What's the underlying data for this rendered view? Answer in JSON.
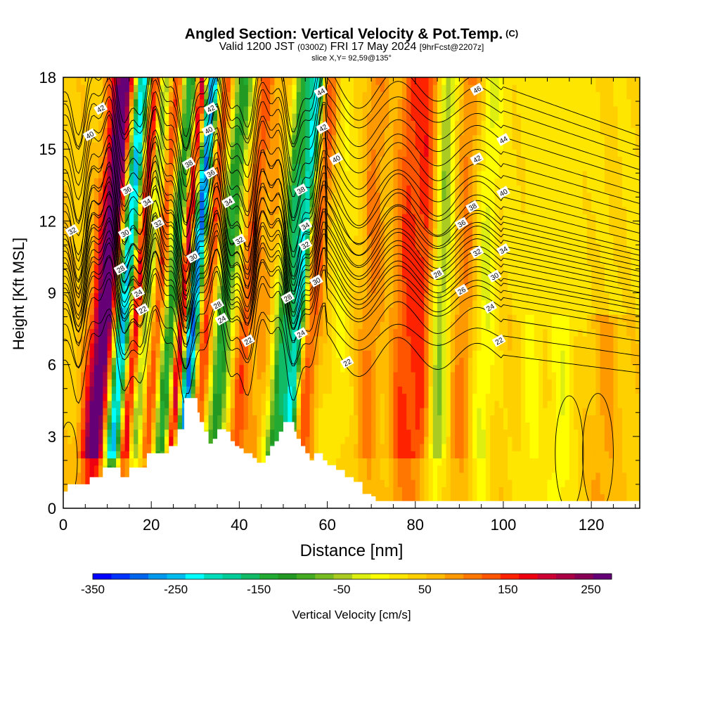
{
  "chart_data": {
    "type": "heatmap",
    "title": "Angled Section: Vertical Velocity & Pot.Temp.",
    "title_unit": "(C)",
    "subtitle_main": "Valid 1200 JST",
    "subtitle_utc": "(0300Z)",
    "subtitle_date": "FRI 17 May 2024",
    "subtitle_fcst": "[9hrFcst@2207z]",
    "slice_label": "slice X,Y= 92,59@135°",
    "xlabel": "Distance [nm]",
    "ylabel": "Height [Kft MSL]",
    "xlim": [
      0,
      131
    ],
    "ylim": [
      0,
      18
    ],
    "x_ticks": [
      0,
      20,
      40,
      60,
      80,
      100,
      120
    ],
    "y_ticks": [
      0,
      3,
      6,
      9,
      12,
      15,
      18
    ],
    "colorbar": {
      "label": "Vertical Velocity [cm/s]",
      "range": [
        -350,
        275
      ],
      "tick_values": [
        -350,
        -250,
        -150,
        -50,
        50,
        150,
        250
      ],
      "tick_labels": [
        "-350",
        "-250",
        "-150",
        "-50",
        "50",
        "150",
        "250"
      ],
      "colors": [
        "#0000ff",
        "#0033ff",
        "#0066ee",
        "#0099ee",
        "#00bbee",
        "#00ffff",
        "#00ddbb",
        "#00cc99",
        "#11bb66",
        "#22aa33",
        "#229922",
        "#44aa22",
        "#77bb22",
        "#aacc22",
        "#ddee11",
        "#ffff00",
        "#ffe600",
        "#ffd000",
        "#ffbb00",
        "#ff9900",
        "#ff7700",
        "#ff5500",
        "#ff2200",
        "#ee0011",
        "#cc0033",
        "#aa0044",
        "#880055",
        "#660077"
      ]
    },
    "velocity_bands": [
      {
        "x": 10,
        "w": 3.0,
        "v": 260
      },
      {
        "x": 14,
        "w": 2.0,
        "v": -330
      },
      {
        "x": 17,
        "w": 1.5,
        "v": 180
      },
      {
        "x": 19,
        "w": 1.5,
        "v": -120
      },
      {
        "x": 22,
        "w": 1.5,
        "v": 100
      },
      {
        "x": 25,
        "w": 1.8,
        "v": -180
      },
      {
        "x": 27.5,
        "w": 1.2,
        "v": 200
      },
      {
        "x": 30,
        "w": 1.6,
        "v": -340
      },
      {
        "x": 33,
        "w": 1.8,
        "v": 110
      },
      {
        "x": 37,
        "w": 2.2,
        "v": -170
      },
      {
        "x": 42,
        "w": 1.8,
        "v": 90
      },
      {
        "x": 46,
        "w": 2.2,
        "v": 40
      },
      {
        "x": 51,
        "w": 2.2,
        "v": -190
      },
      {
        "x": 54,
        "w": 1.5,
        "v": -240
      },
      {
        "x": 57,
        "w": 2.2,
        "v": 90
      },
      {
        "x": 63,
        "w": 3.0,
        "v": -30
      },
      {
        "x": 70,
        "w": 2.5,
        "v": 60
      },
      {
        "x": 78,
        "w": 3.0,
        "v": 100
      },
      {
        "x": 82,
        "w": 2.2,
        "v": 90
      },
      {
        "x": 86,
        "w": 2.2,
        "v": -100
      },
      {
        "x": 91,
        "w": 2.5,
        "v": 60
      },
      {
        "x": 96,
        "w": 2.5,
        "v": -60
      },
      {
        "x": 107,
        "w": 2.5,
        "v": -40
      },
      {
        "x": 114,
        "w": 3.0,
        "v": -50
      },
      {
        "x": 124,
        "w": 3.0,
        "v": 40
      }
    ],
    "terrain": [
      [
        0,
        0.7
      ],
      [
        1,
        1.0
      ],
      [
        6,
        1.3
      ],
      [
        9,
        1.7
      ],
      [
        13,
        1.3
      ],
      [
        15,
        1.7
      ],
      [
        19,
        2.3
      ],
      [
        24,
        2.6
      ],
      [
        26,
        3.3
      ],
      [
        27.5,
        4.6
      ],
      [
        30,
        4.6
      ],
      [
        30.5,
        4.0
      ],
      [
        31,
        3.6
      ],
      [
        32,
        3.2
      ],
      [
        33,
        2.7
      ],
      [
        34,
        2.9
      ],
      [
        35,
        3.3
      ],
      [
        37,
        3.2
      ],
      [
        38,
        2.8
      ],
      [
        39,
        2.6
      ],
      [
        40,
        2.5
      ],
      [
        41,
        2.3
      ],
      [
        43,
        2.1
      ],
      [
        44,
        1.9
      ],
      [
        46,
        2.2
      ],
      [
        47,
        2.6
      ],
      [
        48,
        2.8
      ],
      [
        49,
        3.2
      ],
      [
        50,
        3.6
      ],
      [
        52,
        3.6
      ],
      [
        52.5,
        3.2
      ],
      [
        53,
        2.9
      ],
      [
        54,
        2.6
      ],
      [
        55,
        2.3
      ],
      [
        56,
        2.0
      ],
      [
        57,
        2.3
      ],
      [
        58,
        2.3
      ],
      [
        59,
        2.0
      ],
      [
        60,
        1.8
      ],
      [
        62,
        1.6
      ],
      [
        64,
        1.3
      ],
      [
        66,
        1.1
      ],
      [
        68,
        0.6
      ],
      [
        70,
        0.5
      ],
      [
        71,
        0.3
      ],
      [
        131,
        0.3
      ]
    ],
    "theta_contours": [
      {
        "level": 22,
        "base": 7.2,
        "pert": 1.0,
        "labels": [
          [
            18,
            8.3
          ],
          [
            42,
            7.0
          ],
          [
            64.5,
            6.1
          ],
          [
            99,
            7.0
          ]
        ]
      },
      {
        "level": 24,
        "base": 8.5,
        "pert": 1.2,
        "labels": [
          [
            17,
            9.0
          ],
          [
            36,
            7.9
          ],
          [
            54,
            7.3
          ],
          [
            97,
            8.4
          ]
        ]
      },
      {
        "level": 26,
        "base": 9.1,
        "pert": 1.3,
        "labels": [
          [
            90.5,
            9.1
          ]
        ]
      },
      {
        "level": 28,
        "base": 9.6,
        "pert": 1.5,
        "labels": [
          [
            13,
            10.0
          ],
          [
            35,
            8.5
          ],
          [
            51,
            8.8
          ],
          [
            85,
            9.8
          ]
        ]
      },
      {
        "level": 30,
        "base": 10.2,
        "pert": 1.6,
        "labels": [
          [
            14,
            11.5
          ],
          [
            29.5,
            10.5
          ],
          [
            57.5,
            9.5
          ],
          [
            98,
            9.7
          ]
        ]
      },
      {
        "level": 32,
        "base": 10.7,
        "pert": 1.7,
        "labels": [
          [
            2,
            11.6
          ],
          [
            21.5,
            11.9
          ],
          [
            40,
            11.2
          ],
          [
            55,
            11.0
          ],
          [
            94,
            10.7
          ]
        ]
      },
      {
        "level": 34,
        "base": 11.2,
        "pert": 1.8,
        "labels": [
          [
            19,
            12.8
          ],
          [
            37.5,
            12.8
          ],
          [
            55,
            11.8
          ],
          [
            100,
            10.8
          ]
        ]
      },
      {
        "level": 36,
        "base": 11.7,
        "pert": 1.9,
        "labels": [
          [
            14.5,
            13.3
          ],
          [
            33.5,
            14.0
          ],
          [
            90.5,
            11.9
          ]
        ]
      },
      {
        "level": 38,
        "base": 12.2,
        "pert": 2.0,
        "labels": [
          [
            28.5,
            14.4
          ],
          [
            54,
            13.3
          ],
          [
            93,
            12.6
          ]
        ]
      },
      {
        "level": 40,
        "base": 13.0,
        "pert": 2.0,
        "labels": [
          [
            6,
            15.6
          ],
          [
            33,
            15.8
          ],
          [
            62,
            14.6
          ],
          [
            100,
            13.2
          ]
        ]
      },
      {
        "level": 42,
        "base": 14.4,
        "pert": 1.8,
        "labels": [
          [
            8.5,
            16.7
          ],
          [
            33.5,
            16.7
          ],
          [
            59,
            15.9
          ],
          [
            94,
            14.6
          ]
        ]
      },
      {
        "level": 44,
        "base": 15.5,
        "pert": 1.5,
        "labels": [
          [
            58.5,
            17.4
          ],
          [
            100,
            15.4
          ]
        ]
      },
      {
        "level": 46,
        "base": 16.6,
        "pert": 1.2,
        "labels": [
          [
            94,
            17.5
          ]
        ]
      }
    ],
    "minor_contours": [
      6.4,
      7.9,
      8.8,
      9.4,
      9.9,
      10.45,
      10.95,
      11.45,
      11.95,
      12.6,
      13.4,
      13.9,
      14.9,
      16.0,
      17.1,
      17.6
    ],
    "closed_contours": [
      {
        "cx": 115,
        "cy": 2.3,
        "rx": 3.2,
        "ry": 2.4
      },
      {
        "cx": 121.5,
        "cy": 2.3,
        "rx": 3.5,
        "ry": 2.5
      },
      {
        "cx": 1.2,
        "cy": 2.0,
        "rx": 2.0,
        "ry": 1.6
      }
    ]
  }
}
